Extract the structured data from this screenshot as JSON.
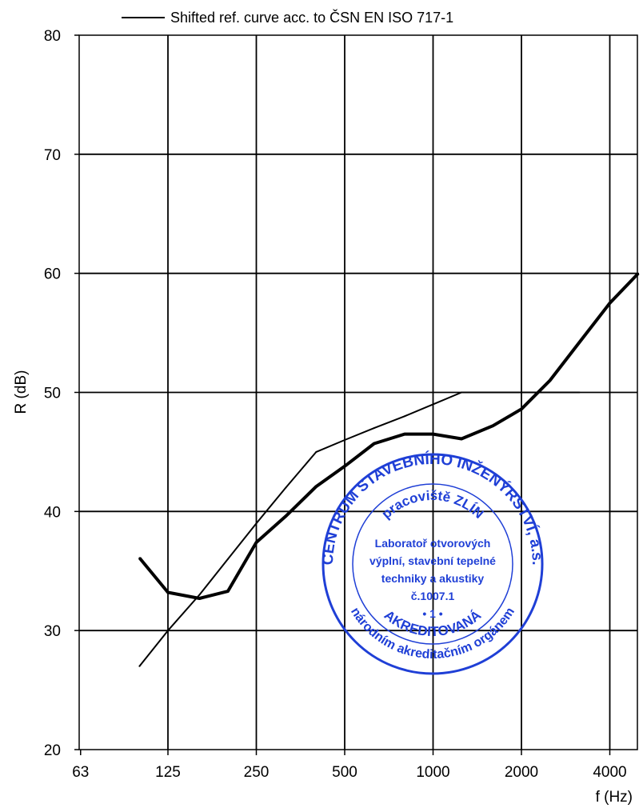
{
  "chart_data": {
    "type": "line",
    "x_scale": "log",
    "xlabel": "f (Hz)",
    "ylabel": "R (dB)",
    "xlim": [
      63,
      5000
    ],
    "ylim": [
      20,
      80
    ],
    "x_tick_values": [
      63,
      125,
      250,
      500,
      1000,
      2000,
      4000
    ],
    "x_tick_labels": [
      "63",
      "125",
      "250",
      "500",
      "1000",
      "2000",
      "4000"
    ],
    "y_ticks": [
      20,
      30,
      40,
      50,
      60,
      70,
      80
    ],
    "grid": true,
    "legend_position": "top",
    "series": [
      {
        "name": "",
        "style": "thick",
        "x": [
          100,
          125,
          160,
          200,
          250,
          315,
          400,
          500,
          630,
          800,
          1000,
          1250,
          1600,
          2000,
          2500,
          3150,
          4000,
          5000
        ],
        "y": [
          36.1,
          33.2,
          32.7,
          33.3,
          37.4,
          39.6,
          42.1,
          43.8,
          45.7,
          46.5,
          46.5,
          46.1,
          47.2,
          48.6,
          51.0,
          54.2,
          57.5,
          60.0
        ]
      },
      {
        "name": "Shifted ref. curve acc. to ČSN EN ISO 717-1",
        "style": "thin",
        "x": [
          100,
          125,
          160,
          200,
          250,
          315,
          400,
          500,
          630,
          800,
          1000,
          1250,
          1600,
          2000,
          2500,
          3150
        ],
        "y": [
          27,
          30,
          33,
          36,
          39,
          42,
          45,
          46,
          47,
          48,
          49,
          50,
          50,
          50,
          50,
          50
        ]
      }
    ]
  },
  "stamp": {
    "outer_top": "CENTRUM STAVEBNÍHO INŽENÝRSTVÍ, a.s.",
    "inner_top": "pracoviště ZLÍN",
    "lines": [
      "Laboratoř otvorových",
      "výplní, stavební tepelné",
      "techniky a akustiky",
      "č.1007.1",
      "• 1 •"
    ],
    "inner_bottom": "AKREDITOVANÁ",
    "outer_bottom": "národním akreditačním orgánem",
    "color": "#1f3fd6"
  }
}
